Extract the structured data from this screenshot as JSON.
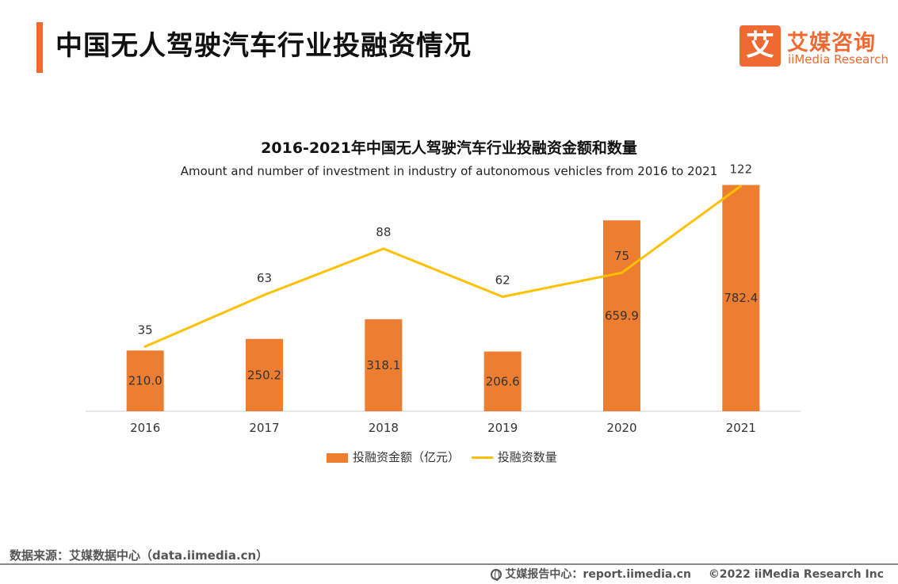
{
  "header": {
    "title": "中国无人驾驶汽车行业投融资情况"
  },
  "logo": {
    "mark": "艾",
    "name_cn": "艾媒咨询",
    "name_en": "iiMedia Research"
  },
  "colors": {
    "accent": "#ee6a32",
    "bar": "#ed7d31",
    "line": "#ffc000"
  },
  "chart_data": {
    "type": "bar",
    "title": "2016-2021年中国无人驾驶汽车行业投融资金额和数量",
    "subtitle": "Amount and number of investment in industry of autonomous vehicles from 2016 to 2021",
    "categories": [
      "2016",
      "2017",
      "2018",
      "2019",
      "2020",
      "2021"
    ],
    "series": [
      {
        "name": "投融资金额（亿元）",
        "type": "bar",
        "axis": "left",
        "values": [
          210.0,
          250.2,
          318.1,
          206.6,
          659.9,
          782.4
        ],
        "labels": [
          "210.0",
          "250.2",
          "318.1",
          "206.6",
          "659.9",
          "782.4"
        ]
      },
      {
        "name": "投融资数量",
        "type": "line",
        "axis": "right",
        "values": [
          35,
          63,
          88,
          62,
          75,
          122
        ],
        "labels": [
          "35",
          "63",
          "88",
          "62",
          "75",
          "122"
        ]
      }
    ],
    "left_ylim": [
      0,
      800
    ],
    "right_ylim": [
      0,
      130
    ],
    "grid": false,
    "legend_position": "bottom"
  },
  "footer": {
    "source": "数据来源：艾媒数据中心（data.iimedia.cn）",
    "report": "艾媒报告中心：report.iimedia.cn",
    "copyright": "©2022  iiMedia Research  Inc"
  }
}
